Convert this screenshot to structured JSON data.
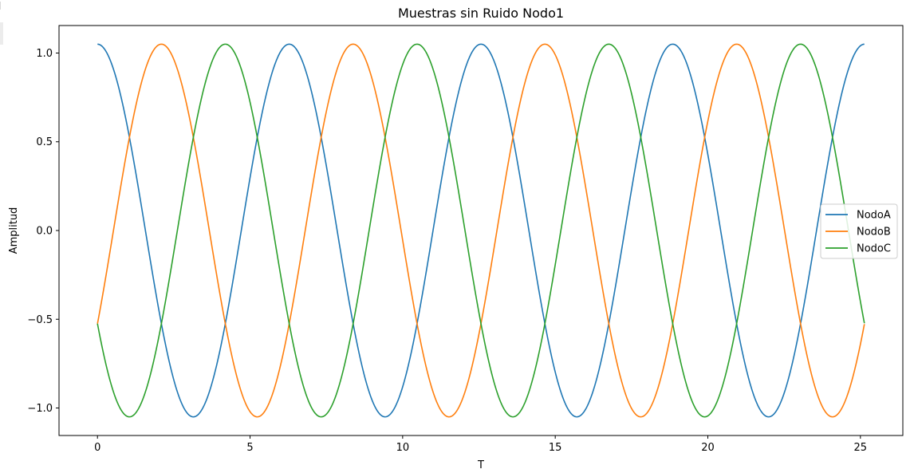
{
  "chart_data": {
    "type": "line",
    "title": "Muestras sin Ruido Nodo1",
    "xlabel": "T",
    "ylabel": "Amplitud",
    "xlim": [
      -1.26,
      26.39
    ],
    "ylim": [
      -1.155,
      1.155
    ],
    "xticks": [
      0,
      5,
      10,
      15,
      20,
      25
    ],
    "xtick_labels": [
      "0",
      "5",
      "10",
      "15",
      "20",
      "25"
    ],
    "yticks": [
      -1.0,
      -0.5,
      0.0,
      0.5,
      1.0
    ],
    "ytick_labels": [
      "−1.0",
      "−0.5",
      "0.0",
      "0.5",
      "1.0"
    ],
    "grid": false,
    "legend": "center-right",
    "x_range": [
      0,
      25.13
    ],
    "num_points": 1000,
    "series": [
      {
        "name": "NodoA",
        "color": "#1f77b4",
        "amplitude": 1.05,
        "frequency": 1.0,
        "phase_deg": 0
      },
      {
        "name": "NodoB",
        "color": "#ff7f0e",
        "amplitude": 1.05,
        "frequency": 1.0,
        "phase_deg": -120
      },
      {
        "name": "NodoC",
        "color": "#2ca02c",
        "amplitude": 1.05,
        "frequency": 1.0,
        "phase_deg": 120
      }
    ]
  }
}
